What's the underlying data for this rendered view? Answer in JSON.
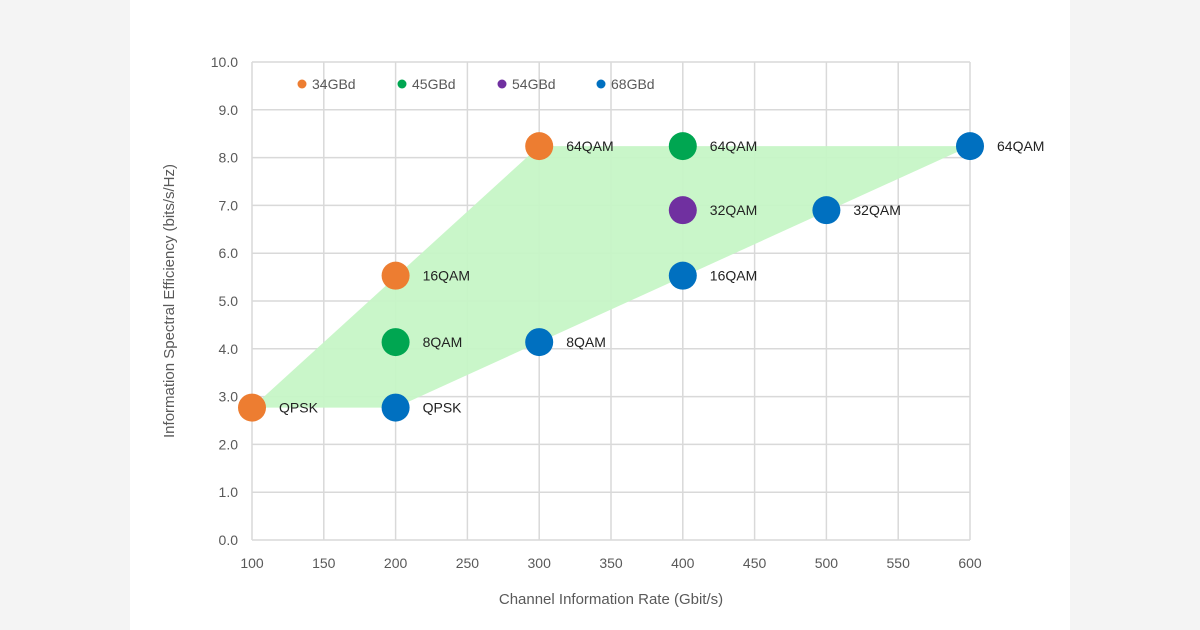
{
  "chart_data": {
    "type": "scatter",
    "title": "",
    "xlabel": "Channel Information Rate (Gbit/s)",
    "ylabel": "Information Spectral Efficiency (bits/s/Hz)",
    "xlim": [
      100,
      600
    ],
    "ylim": [
      0,
      10
    ],
    "x_ticks": [
      "100",
      "150",
      "200",
      "250",
      "300",
      "350",
      "400",
      "450",
      "500",
      "550",
      "600"
    ],
    "y_ticks": [
      "0.0",
      "1.0",
      "2.0",
      "3.0",
      "4.0",
      "5.0",
      "6.0",
      "7.0",
      "8.0",
      "9.0",
      "10.0"
    ],
    "grid": true,
    "legend_position": "top",
    "series": [
      {
        "name": "34GBd",
        "color": "#ED7D31",
        "points": [
          {
            "x": 100,
            "y": 2.77,
            "label": "QPSK"
          },
          {
            "x": 200,
            "y": 5.53,
            "label": "16QAM"
          },
          {
            "x": 300,
            "y": 8.24,
            "label": "64QAM"
          }
        ]
      },
      {
        "name": "45GBd",
        "color": "#00A651",
        "points": [
          {
            "x": 200,
            "y": 4.14,
            "label": "8QAM"
          },
          {
            "x": 400,
            "y": 8.24,
            "label": "64QAM"
          }
        ]
      },
      {
        "name": "54GBd",
        "color": "#7030A0",
        "points": [
          {
            "x": 400,
            "y": 6.9,
            "label": "32QAM"
          }
        ]
      },
      {
        "name": "68GBd",
        "color": "#0070C0",
        "points": [
          {
            "x": 200,
            "y": 2.77,
            "label": "QPSK"
          },
          {
            "x": 300,
            "y": 4.14,
            "label": "8QAM"
          },
          {
            "x": 400,
            "y": 5.53,
            "label": "16QAM"
          },
          {
            "x": 500,
            "y": 6.9,
            "label": "32QAM"
          },
          {
            "x": 600,
            "y": 8.24,
            "label": "64QAM"
          }
        ]
      }
    ],
    "shaded_region": {
      "color": "#C6F5C6",
      "polygon": [
        [
          100,
          2.77
        ],
        [
          300,
          8.24
        ],
        [
          600,
          8.24
        ],
        [
          200,
          2.77
        ]
      ]
    }
  }
}
